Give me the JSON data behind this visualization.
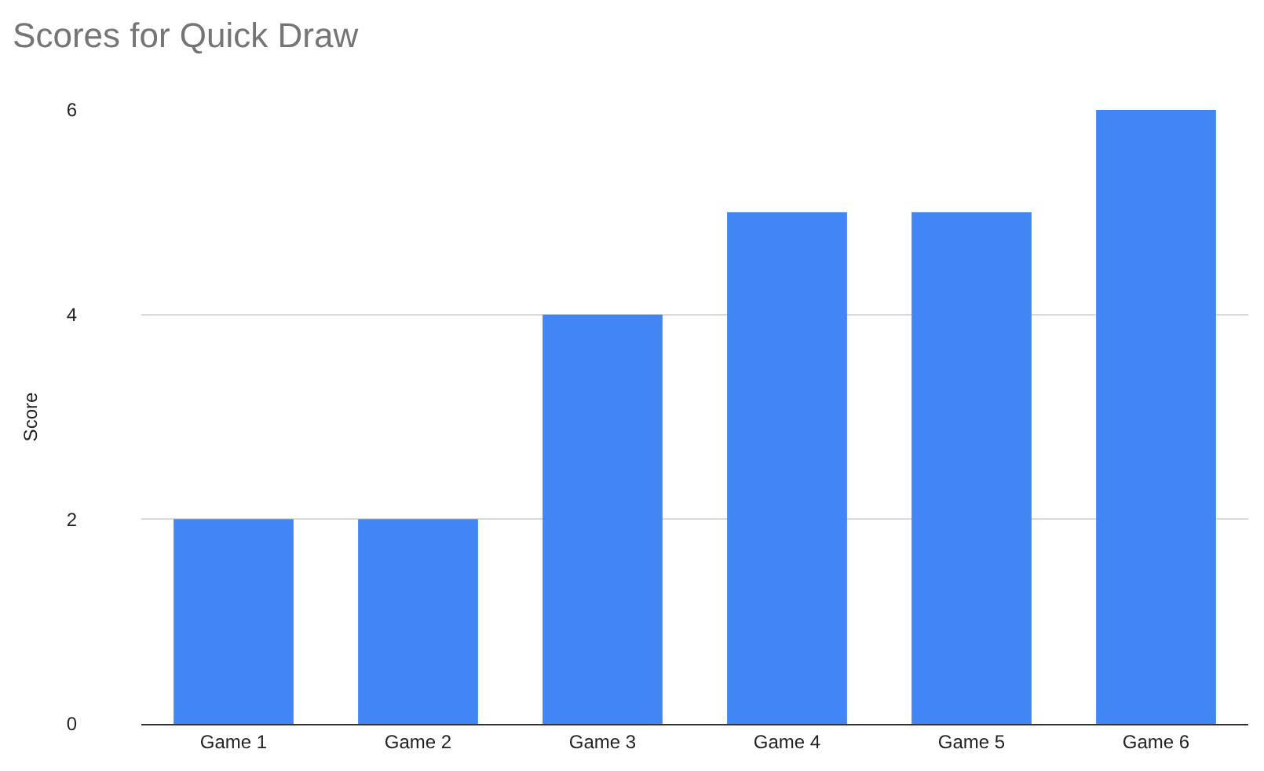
{
  "chart_data": {
    "type": "bar",
    "title": "Scores for Quick Draw",
    "ylabel": "Score",
    "categories": [
      "Game 1",
      "Game 2",
      "Game 3",
      "Game 4",
      "Game 5",
      "Game 6"
    ],
    "values": [
      2,
      2,
      4,
      5,
      5,
      6
    ],
    "color": "#4285f4",
    "ylim": [
      0,
      6
    ],
    "yticks": [
      0,
      2,
      4,
      6
    ],
    "grid": "y",
    "legend": false
  }
}
